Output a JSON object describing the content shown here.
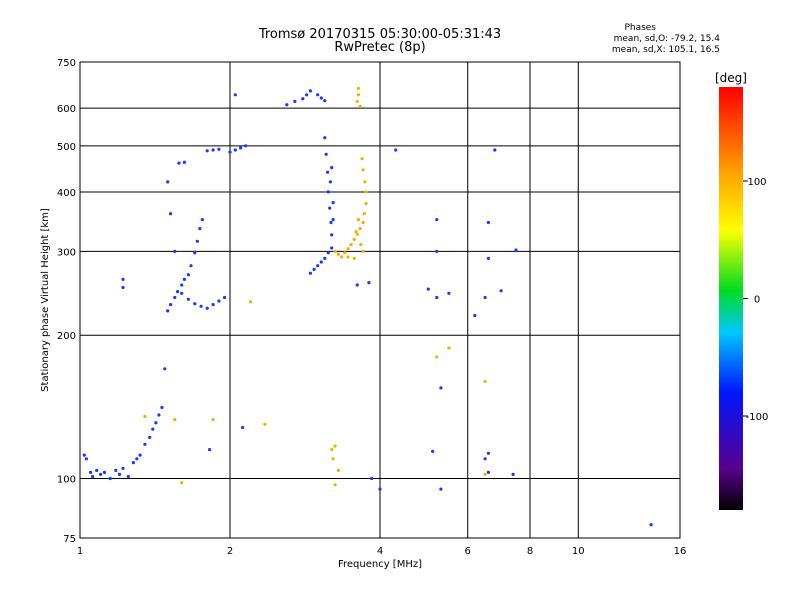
{
  "header": {
    "title": "Tromsø 20170315 05:30:00-05:31:43",
    "subtitle": "RwPretec (8p)",
    "phases_title": "Phases",
    "phases_o": "mean, sd,O: -79.2, 15.4",
    "phases_x": "mean, sd,X: 105.1, 16.5"
  },
  "colors": {
    "grid": "#000000",
    "colorbar_min": "#000000",
    "colorbar_max": "#ff0000"
  },
  "chart_data": {
    "type": "scatter",
    "title": "Tromsø 20170315 05:30:00-05:31:43",
    "subtitle": "RwPretec (8p)",
    "xlabel": "Frequency [MHz]",
    "ylabel": "Stationary phase Virtual Height [km]",
    "x_scale": "log",
    "y_scale": "log",
    "xlim": [
      1,
      16
    ],
    "ylim": [
      75,
      750
    ],
    "x_ticks": [
      1,
      2,
      4,
      6,
      8,
      10,
      16
    ],
    "y_ticks": [
      75,
      100,
      200,
      300,
      400,
      500,
      600,
      750
    ],
    "grid": true,
    "colorbar": {
      "label": "[deg]",
      "range": [
        -180,
        180
      ],
      "ticks": [
        -100,
        0,
        100
      ],
      "colormap": "rainbow: black-purple-blue-cyan-green-yellow-orange-red"
    },
    "series": [
      {
        "mode": "O",
        "phase_deg": -100,
        "points": [
          [
            1.02,
            112
          ],
          [
            1.03,
            110
          ],
          [
            1.05,
            103
          ],
          [
            1.06,
            101
          ],
          [
            1.08,
            104
          ],
          [
            1.1,
            102
          ],
          [
            1.12,
            103
          ],
          [
            1.15,
            100
          ],
          [
            1.18,
            104
          ],
          [
            1.2,
            102
          ],
          [
            1.22,
            105
          ],
          [
            1.25,
            101
          ],
          [
            1.28,
            108
          ],
          [
            1.3,
            110
          ],
          [
            1.32,
            112
          ],
          [
            1.35,
            118
          ],
          [
            1.38,
            122
          ],
          [
            1.4,
            127
          ],
          [
            1.42,
            131
          ],
          [
            1.44,
            136
          ],
          [
            1.46,
            141
          ],
          [
            1.48,
            170
          ],
          [
            1.5,
            225
          ],
          [
            1.52,
            232
          ],
          [
            1.55,
            240
          ],
          [
            1.57,
            247
          ],
          [
            1.6,
            255
          ],
          [
            1.62,
            262
          ],
          [
            1.65,
            268
          ],
          [
            1.67,
            280
          ],
          [
            1.7,
            298
          ],
          [
            1.72,
            315
          ],
          [
            1.74,
            335
          ],
          [
            1.76,
            350
          ],
          [
            1.55,
            300
          ],
          [
            1.52,
            360
          ],
          [
            1.5,
            420
          ],
          [
            1.58,
            460
          ],
          [
            1.62,
            462
          ],
          [
            1.6,
            245
          ],
          [
            1.65,
            238
          ],
          [
            1.7,
            233
          ],
          [
            1.75,
            230
          ],
          [
            1.8,
            228
          ],
          [
            1.85,
            232
          ],
          [
            1.9,
            236
          ],
          [
            1.95,
            240
          ],
          [
            1.8,
            488
          ],
          [
            1.85,
            490
          ],
          [
            1.9,
            492
          ],
          [
            2.0,
            485
          ],
          [
            2.05,
            490
          ],
          [
            2.1,
            495
          ],
          [
            2.15,
            500
          ],
          [
            2.6,
            610
          ],
          [
            2.7,
            620
          ],
          [
            2.8,
            628
          ],
          [
            2.85,
            640
          ],
          [
            2.9,
            652
          ],
          [
            3.0,
            640
          ],
          [
            3.05,
            630
          ],
          [
            3.1,
            622
          ],
          [
            3.1,
            520
          ],
          [
            3.12,
            480
          ],
          [
            3.14,
            440
          ],
          [
            3.15,
            400
          ],
          [
            3.17,
            370
          ],
          [
            3.19,
            345
          ],
          [
            3.2,
            325
          ],
          [
            3.2,
            305
          ],
          [
            3.15,
            298
          ],
          [
            3.1,
            290
          ],
          [
            3.05,
            285
          ],
          [
            3.0,
            280
          ],
          [
            2.95,
            275
          ],
          [
            2.9,
            270
          ],
          [
            3.2,
            450
          ],
          [
            3.18,
            420
          ],
          [
            3.22,
            380
          ],
          [
            3.22,
            350
          ],
          [
            1.22,
            262
          ],
          [
            1.22,
            252
          ],
          [
            1.82,
            115
          ],
          [
            2.12,
            128
          ],
          [
            2.05,
            640
          ],
          [
            4.3,
            490
          ],
          [
            5.2,
            350
          ],
          [
            5.5,
            245
          ],
          [
            5.2,
            300
          ],
          [
            5.3,
            155
          ],
          [
            6.2,
            220
          ],
          [
            6.5,
            110
          ],
          [
            6.8,
            490
          ],
          [
            6.6,
            345
          ],
          [
            7.5,
            302
          ],
          [
            7.0,
            248
          ],
          [
            6.6,
            290
          ],
          [
            3.8,
            258
          ],
          [
            3.6,
            255
          ],
          [
            5.2,
            240
          ],
          [
            5.3,
            95
          ],
          [
            4.0,
            95
          ],
          [
            3.85,
            100
          ],
          [
            7.4,
            102
          ],
          [
            6.5,
            240
          ],
          [
            5.0,
            250
          ],
          [
            5.1,
            114
          ],
          [
            6.6,
            113
          ],
          [
            6.6,
            103
          ],
          [
            14.0,
            80
          ]
        ]
      },
      {
        "mode": "X",
        "phase_deg": 105,
        "points": [
          [
            3.25,
            300
          ],
          [
            3.3,
            296
          ],
          [
            3.35,
            292
          ],
          [
            3.4,
            298
          ],
          [
            3.45,
            304
          ],
          [
            3.5,
            310
          ],
          [
            3.55,
            318
          ],
          [
            3.6,
            326
          ],
          [
            3.65,
            335
          ],
          [
            3.7,
            345
          ],
          [
            3.72,
            360
          ],
          [
            3.75,
            378
          ],
          [
            3.75,
            400
          ],
          [
            3.73,
            420
          ],
          [
            3.7,
            445
          ],
          [
            3.68,
            470
          ],
          [
            3.62,
            350
          ],
          [
            3.58,
            330
          ],
          [
            3.66,
            310
          ],
          [
            3.7,
            300
          ],
          [
            3.55,
            290
          ],
          [
            3.45,
            292
          ],
          [
            3.6,
            620
          ],
          [
            3.62,
            640
          ],
          [
            3.65,
            605
          ],
          [
            3.62,
            660
          ],
          [
            3.2,
            115
          ],
          [
            3.22,
            110
          ],
          [
            3.25,
            117
          ],
          [
            3.3,
            104
          ],
          [
            3.25,
            97
          ],
          [
            2.35,
            130
          ],
          [
            1.85,
            133
          ],
          [
            1.55,
            133
          ],
          [
            1.35,
            135
          ],
          [
            5.5,
            188
          ],
          [
            5.2,
            180
          ],
          [
            6.5,
            160
          ],
          [
            6.5,
            102
          ],
          [
            2.2,
            235
          ],
          [
            1.6,
            98
          ]
        ]
      }
    ]
  }
}
